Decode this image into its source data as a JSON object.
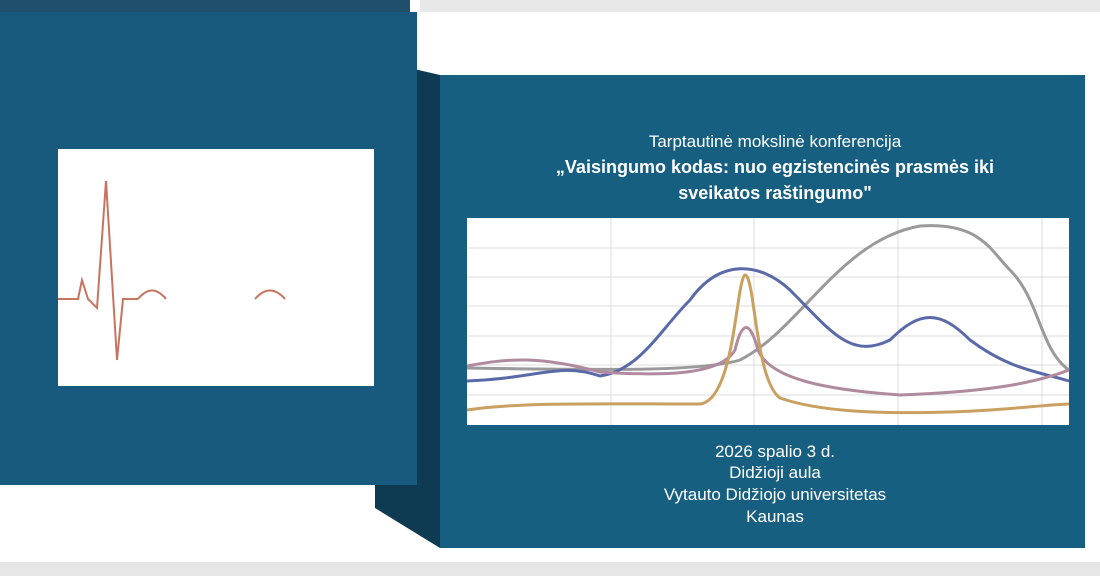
{
  "header": {
    "subtitle": "Tarptautinė mokslinė konferencija",
    "title_lines": [
      "„Vaisingumo kodas: nuo egzistencinės prasmės iki",
      "sveikatos raštingumo\""
    ]
  },
  "details": [
    "2026 spalio 3 d.",
    "Didžioji aula",
    "Vytauto Didžiojo universitetas",
    "Kaunas"
  ]
}
